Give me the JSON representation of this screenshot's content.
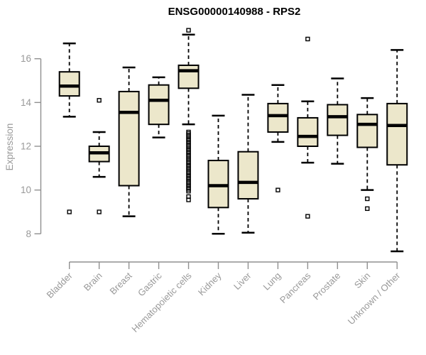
{
  "title": "ENSG00000140988 - RPS2",
  "colors": {
    "background": "#ffffff",
    "box_fill": "#ece7cb",
    "box_stroke": "#000000",
    "median_stroke": "#000000",
    "whisker_stroke": "#000000",
    "outlier_stroke": "#000000",
    "axis": "#909090",
    "tick_text": "#999999",
    "title_text": "#000000"
  },
  "chart_data": {
    "type": "boxplot",
    "title": "ENSG00000140988 - RPS2",
    "xlabel": "",
    "ylabel": "Expression",
    "ylim": [
      7,
      17.5
    ],
    "yticks": [
      8,
      10,
      12,
      14,
      16
    ],
    "grid": false,
    "legend": "none",
    "categories": [
      "Bladder",
      "Brain",
      "Breast",
      "Gastric",
      "Hematopoietic cells",
      "Kidney",
      "Liver",
      "Lung",
      "Pancreas",
      "Prostate",
      "Skin",
      "Unknown / Other"
    ],
    "series": [
      {
        "category": "Bladder",
        "whisker_low": 13.35,
        "q1": 14.3,
        "median": 14.75,
        "q3": 15.4,
        "whisker_high": 16.7,
        "outliers": [
          9.0
        ]
      },
      {
        "category": "Brain",
        "whisker_low": 10.6,
        "q1": 11.3,
        "median": 11.7,
        "q3": 12.0,
        "whisker_high": 12.65,
        "outliers": [
          14.1,
          9.0
        ]
      },
      {
        "category": "Breast",
        "whisker_low": 8.8,
        "q1": 10.2,
        "median": 13.55,
        "q3": 14.5,
        "whisker_high": 15.6,
        "outliers": []
      },
      {
        "category": "Gastric",
        "whisker_low": 12.4,
        "q1": 13.0,
        "median": 14.1,
        "q3": 14.8,
        "whisker_high": 15.15,
        "outliers": []
      },
      {
        "category": "Hematopoietic cells",
        "whisker_low": 13.0,
        "q1": 14.65,
        "median": 15.45,
        "q3": 15.7,
        "whisker_high": 17.1,
        "outliers": [
          17.3,
          12.65,
          12.58,
          12.5,
          12.43,
          12.35,
          12.28,
          12.2,
          12.13,
          12.05,
          11.98,
          11.9,
          11.83,
          11.75,
          11.68,
          11.6,
          11.53,
          11.45,
          11.38,
          11.3,
          11.23,
          11.15,
          11.08,
          11.0,
          10.93,
          10.85,
          10.78,
          10.7,
          10.63,
          10.55,
          10.48,
          10.4,
          10.33,
          10.25,
          10.18,
          10.1,
          10.03,
          9.95,
          9.7,
          9.55
        ]
      },
      {
        "category": "Kidney",
        "whisker_low": 8.0,
        "q1": 9.2,
        "median": 10.2,
        "q3": 11.35,
        "whisker_high": 13.4,
        "outliers": []
      },
      {
        "category": "Liver",
        "whisker_low": 8.05,
        "q1": 9.6,
        "median": 10.35,
        "q3": 11.75,
        "whisker_high": 14.35,
        "outliers": []
      },
      {
        "category": "Lung",
        "whisker_low": 12.2,
        "q1": 12.65,
        "median": 13.4,
        "q3": 13.95,
        "whisker_high": 14.8,
        "outliers": [
          10.0
        ]
      },
      {
        "category": "Pancreas",
        "whisker_low": 11.25,
        "q1": 12.0,
        "median": 12.45,
        "q3": 13.3,
        "whisker_high": 14.05,
        "outliers": [
          16.9,
          8.8
        ]
      },
      {
        "category": "Prostate",
        "whisker_low": 11.2,
        "q1": 12.5,
        "median": 13.35,
        "q3": 13.9,
        "whisker_high": 15.1,
        "outliers": []
      },
      {
        "category": "Skin",
        "whisker_low": 10.0,
        "q1": 11.95,
        "median": 13.0,
        "q3": 13.45,
        "whisker_high": 14.2,
        "outliers": [
          9.6,
          9.15
        ]
      },
      {
        "category": "Unknown / Other",
        "whisker_low": 7.2,
        "q1": 11.15,
        "median": 12.95,
        "q3": 13.95,
        "whisker_high": 16.4,
        "outliers": []
      }
    ]
  }
}
